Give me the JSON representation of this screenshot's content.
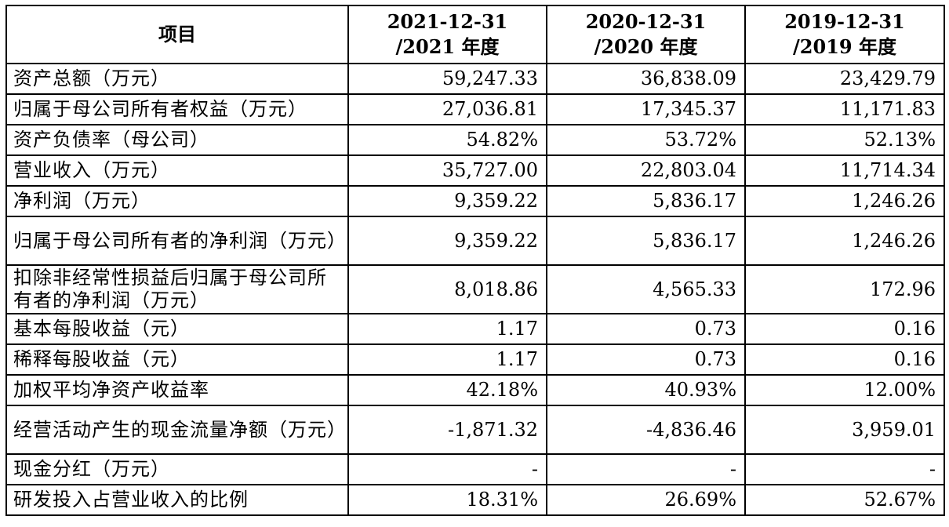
{
  "table": {
    "headers": [
      {
        "line1": "项目",
        "line2": ""
      },
      {
        "line1": "2021-12-31",
        "line2": "/2021 年度"
      },
      {
        "line1": "2020-12-31",
        "line2": "/2020 年度"
      },
      {
        "line1": "2019-12-31",
        "line2": "/2019 年度"
      }
    ],
    "rows": [
      {
        "label": "资产总额（万元）",
        "values": [
          "59,247.33",
          "36,838.09",
          "23,429.79"
        ]
      },
      {
        "label": "归属于母公司所有者权益（万元）",
        "values": [
          "27,036.81",
          "17,345.37",
          "11,171.83"
        ]
      },
      {
        "label": "资产负债率（母公司）",
        "values": [
          "54.82%",
          "53.72%",
          "52.13%"
        ]
      },
      {
        "label": "营业收入（万元）",
        "values": [
          "35,727.00",
          "22,803.04",
          "11,714.34"
        ]
      },
      {
        "label": "净利润（万元）",
        "values": [
          "9,359.22",
          "5,836.17",
          "1,246.26"
        ]
      },
      {
        "label": "归属于母公司所有者的净利润（万元）",
        "values": [
          "9,359.22",
          "5,836.17",
          "1,246.26"
        ]
      },
      {
        "label": "扣除非经常性损益后归属于母公司所有者的净利润（万元）",
        "values": [
          "8,018.86",
          "4,565.33",
          "172.96"
        ]
      },
      {
        "label": "基本每股收益（元）",
        "values": [
          "1.17",
          "0.73",
          "0.16"
        ]
      },
      {
        "label": "稀释每股收益（元）",
        "values": [
          "1.17",
          "0.73",
          "0.16"
        ]
      },
      {
        "label": "加权平均净资产收益率",
        "values": [
          "42.18%",
          "40.93%",
          "12.00%"
        ]
      },
      {
        "label": "经营活动产生的现金流量净额（万元）",
        "values": [
          "-1,871.32",
          "-4,836.46",
          "3,959.01"
        ]
      },
      {
        "label": "现金分红（万元）",
        "values": [
          "-",
          "-",
          "-"
        ]
      },
      {
        "label": "研发投入占营业收入的比例",
        "values": [
          "18.31%",
          "26.69%",
          "52.67%"
        ]
      }
    ]
  }
}
